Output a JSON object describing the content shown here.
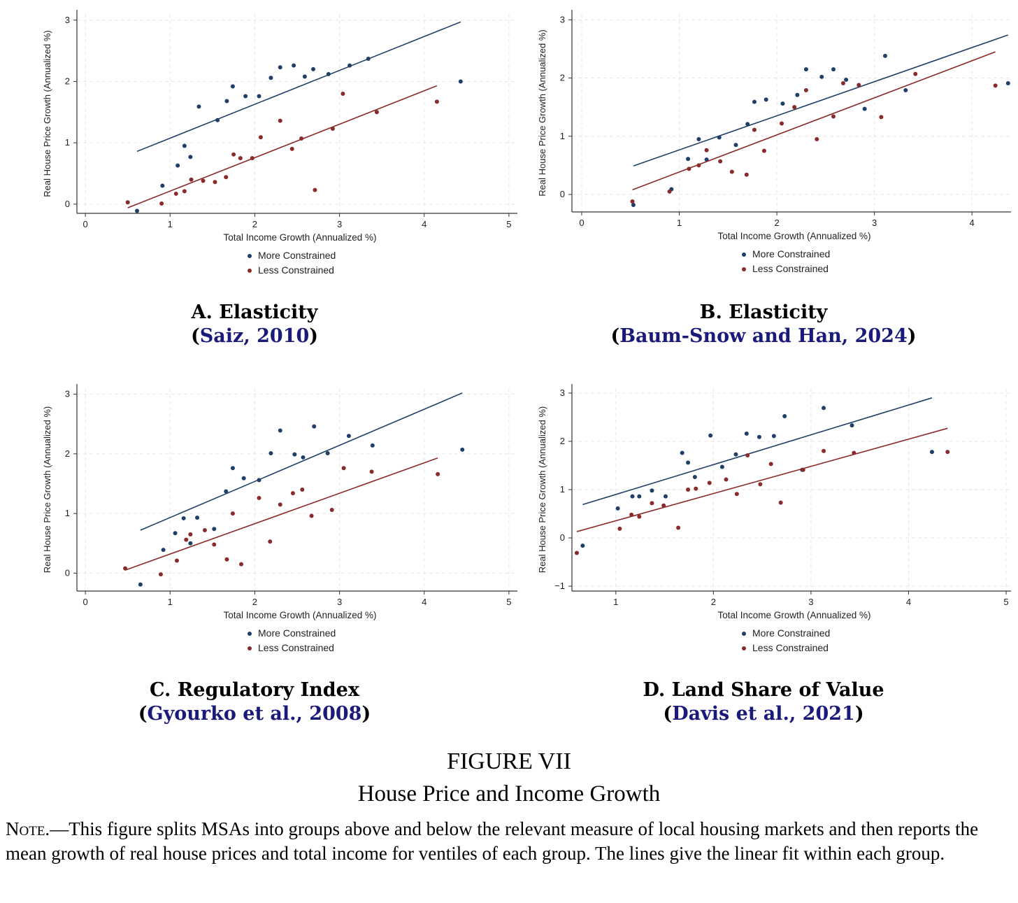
{
  "colors": {
    "more": "#1f3f66",
    "less": "#8a2a2a",
    "axis": "#333333",
    "grid": "#e6e6e6"
  },
  "figure": {
    "number": "FIGURE VII",
    "title": "House Price and Income Growth",
    "note_label": "Note.",
    "note_text": "—This figure splits MSAs into groups above and below the relevant measure of local housing markets and then reports the mean growth of real house prices and total income for ventiles of each group. The lines give the linear fit within each group."
  },
  "chart_data": [
    {
      "type": "scatter",
      "title": "A. Elasticity",
      "citation_author": "Saiz",
      "citation_year": "2010",
      "xlabel": "Total Income Growth (Annualized %)",
      "ylabel": "Real House Price Growth (Annualized %)",
      "xlim": [
        -0.1,
        5.1
      ],
      "ylim": [
        -0.15,
        3.1
      ],
      "xticks": [
        "0",
        "1",
        "2",
        "3",
        "4",
        "5"
      ],
      "yticks": [
        "0",
        "1",
        "2",
        "3"
      ],
      "grid": true,
      "legend_position": "bottom",
      "series": [
        {
          "name": "More Constrained",
          "points": [
            [
              0.61,
              -0.11
            ],
            [
              0.91,
              0.3
            ],
            [
              1.09,
              0.63
            ],
            [
              1.17,
              0.95
            ],
            [
              1.24,
              0.77
            ],
            [
              1.34,
              1.59
            ],
            [
              1.56,
              1.37
            ],
            [
              1.67,
              1.68
            ],
            [
              1.74,
              1.92
            ],
            [
              1.89,
              1.76
            ],
            [
              2.05,
              1.76
            ],
            [
              2.19,
              2.06
            ],
            [
              2.3,
              2.23
            ],
            [
              2.46,
              2.26
            ],
            [
              2.59,
              2.08
            ],
            [
              2.69,
              2.2
            ],
            [
              2.87,
              2.12
            ],
            [
              3.12,
              2.26
            ],
            [
              3.34,
              2.37
            ],
            [
              4.43,
              2.0
            ]
          ],
          "fit": [
            [
              0.61,
              0.86
            ],
            [
              4.43,
              2.97
            ]
          ]
        },
        {
          "name": "Less Constrained",
          "points": [
            [
              0.5,
              0.03
            ],
            [
              0.9,
              0.01
            ],
            [
              1.07,
              0.17
            ],
            [
              1.17,
              0.21
            ],
            [
              1.25,
              0.4
            ],
            [
              1.39,
              0.38
            ],
            [
              1.53,
              0.36
            ],
            [
              1.66,
              0.44
            ],
            [
              1.75,
              0.81
            ],
            [
              1.83,
              0.75
            ],
            [
              1.97,
              0.75
            ],
            [
              2.07,
              1.09
            ],
            [
              2.3,
              1.36
            ],
            [
              2.44,
              0.9
            ],
            [
              2.55,
              1.07
            ],
            [
              2.71,
              0.23
            ],
            [
              2.92,
              1.23
            ],
            [
              3.04,
              1.8
            ],
            [
              3.44,
              1.5
            ],
            [
              4.15,
              1.67
            ]
          ],
          "fit": [
            [
              0.5,
              -0.06
            ],
            [
              4.15,
              1.93
            ]
          ]
        }
      ]
    },
    {
      "type": "scatter",
      "title": "B. Elasticity",
      "citation_author": "Baum-Snow and Han",
      "citation_year": "2024",
      "xlabel": "Total Income Growth (Annualized %)",
      "ylabel": "Real House Price Growth (Annualized %)",
      "xlim": [
        -0.1,
        4.4
      ],
      "ylim": [
        -0.3,
        3.1
      ],
      "xticks": [
        "0",
        "1",
        "2",
        "3",
        "4"
      ],
      "yticks": [
        "0",
        "1",
        "2",
        "3"
      ],
      "grid": true,
      "legend_position": "bottom",
      "series": [
        {
          "name": "More Constrained",
          "points": [
            [
              0.53,
              -0.18
            ],
            [
              0.92,
              0.09
            ],
            [
              1.09,
              0.61
            ],
            [
              1.2,
              0.95
            ],
            [
              1.28,
              0.6
            ],
            [
              1.41,
              0.98
            ],
            [
              1.58,
              0.85
            ],
            [
              1.7,
              1.21
            ],
            [
              1.77,
              1.59
            ],
            [
              1.89,
              1.63
            ],
            [
              2.06,
              1.56
            ],
            [
              2.21,
              1.71
            ],
            [
              2.3,
              2.15
            ],
            [
              2.46,
              2.02
            ],
            [
              2.58,
              2.15
            ],
            [
              2.71,
              1.97
            ],
            [
              2.9,
              1.47
            ],
            [
              3.11,
              2.38
            ],
            [
              3.32,
              1.79
            ],
            [
              4.37,
              1.91
            ]
          ],
          "fit": [
            [
              0.53,
              0.49
            ],
            [
              4.37,
              2.74
            ]
          ]
        },
        {
          "name": "Less Constrained",
          "points": [
            [
              0.52,
              -0.12
            ],
            [
              0.9,
              0.05
            ],
            [
              1.1,
              0.44
            ],
            [
              1.2,
              0.5
            ],
            [
              1.28,
              0.76
            ],
            [
              1.42,
              0.57
            ],
            [
              1.54,
              0.39
            ],
            [
              1.69,
              0.34
            ],
            [
              1.77,
              1.11
            ],
            [
              1.87,
              0.75
            ],
            [
              2.05,
              1.22
            ],
            [
              2.18,
              1.5
            ],
            [
              2.3,
              1.79
            ],
            [
              2.41,
              0.95
            ],
            [
              2.58,
              1.34
            ],
            [
              2.68,
              1.91
            ],
            [
              2.84,
              1.88
            ],
            [
              3.07,
              1.33
            ],
            [
              3.42,
              2.07
            ],
            [
              4.24,
              1.87
            ]
          ],
          "fit": [
            [
              0.52,
              0.08
            ],
            [
              4.24,
              2.45
            ]
          ]
        }
      ]
    },
    {
      "type": "scatter",
      "title": "C. Regulatory Index",
      "citation_author": "Gyourko et al.",
      "citation_year": "2008",
      "xlabel": "Total Income Growth (Annualized %)",
      "ylabel": "Real House Price Growth (Annualized %)",
      "xlim": [
        -0.1,
        5.1
      ],
      "ylim": [
        -0.3,
        3.1
      ],
      "xticks": [
        "0",
        "1",
        "2",
        "3",
        "4",
        "5"
      ],
      "yticks": [
        "0",
        "1",
        "2",
        "3"
      ],
      "grid": true,
      "legend_position": "bottom",
      "series": [
        {
          "name": "More Constrained",
          "points": [
            [
              0.65,
              -0.19
            ],
            [
              0.92,
              0.39
            ],
            [
              1.06,
              0.67
            ],
            [
              1.16,
              0.92
            ],
            [
              1.24,
              0.5
            ],
            [
              1.32,
              0.93
            ],
            [
              1.52,
              0.74
            ],
            [
              1.66,
              1.37
            ],
            [
              1.74,
              1.76
            ],
            [
              1.87,
              1.59
            ],
            [
              2.05,
              1.56
            ],
            [
              2.19,
              2.01
            ],
            [
              2.3,
              2.39
            ],
            [
              2.47,
              1.99
            ],
            [
              2.57,
              1.94
            ],
            [
              2.7,
              2.46
            ],
            [
              2.86,
              2.01
            ],
            [
              3.11,
              2.3
            ],
            [
              3.39,
              2.14
            ],
            [
              4.45,
              2.07
            ]
          ],
          "fit": [
            [
              0.65,
              0.72
            ],
            [
              4.45,
              3.02
            ]
          ]
        },
        {
          "name": "Less Constrained",
          "points": [
            [
              0.47,
              0.08
            ],
            [
              0.89,
              -0.02
            ],
            [
              1.08,
              0.21
            ],
            [
              1.19,
              0.56
            ],
            [
              1.24,
              0.65
            ],
            [
              1.41,
              0.72
            ],
            [
              1.52,
              0.48
            ],
            [
              1.67,
              0.23
            ],
            [
              1.74,
              1.0
            ],
            [
              1.84,
              0.15
            ],
            [
              2.05,
              1.26
            ],
            [
              2.18,
              0.53
            ],
            [
              2.3,
              1.15
            ],
            [
              2.45,
              1.34
            ],
            [
              2.56,
              1.4
            ],
            [
              2.67,
              0.96
            ],
            [
              2.91,
              1.06
            ],
            [
              3.05,
              1.76
            ],
            [
              3.38,
              1.7
            ],
            [
              4.16,
              1.66
            ]
          ],
          "fit": [
            [
              0.47,
              0.05
            ],
            [
              4.16,
              1.93
            ]
          ]
        }
      ]
    },
    {
      "type": "scatter",
      "title": "D. Land Share of Value",
      "citation_author": "Davis et al.",
      "citation_year": "2021",
      "xlabel": "Total Income Growth (Annualized %)",
      "ylabel": "Real House Price Growth (Annualized %)",
      "xlim": [
        0.55,
        5.05
      ],
      "ylim": [
        -1.1,
        3.1
      ],
      "xticks": [
        "1",
        "2",
        "3",
        "4",
        "5"
      ],
      "yticks": [
        "−1",
        "0",
        "1",
        "2",
        "3"
      ],
      "grid": true,
      "legend_position": "bottom",
      "series": [
        {
          "name": "More Constrained",
          "points": [
            [
              0.66,
              -0.16
            ],
            [
              1.02,
              0.61
            ],
            [
              1.17,
              0.86
            ],
            [
              1.24,
              0.86
            ],
            [
              1.37,
              0.98
            ],
            [
              1.51,
              0.86
            ],
            [
              1.68,
              1.76
            ],
            [
              1.74,
              1.56
            ],
            [
              1.81,
              1.26
            ],
            [
              1.97,
              2.12
            ],
            [
              2.09,
              1.47
            ],
            [
              2.23,
              1.73
            ],
            [
              2.34,
              2.16
            ],
            [
              2.47,
              2.09
            ],
            [
              2.62,
              2.11
            ],
            [
              2.73,
              2.52
            ],
            [
              2.91,
              1.41
            ],
            [
              3.13,
              2.69
            ],
            [
              3.42,
              2.33
            ],
            [
              4.24,
              1.78
            ]
          ],
          "fit": [
            [
              0.66,
              0.69
            ],
            [
              4.24,
              2.9
            ]
          ]
        },
        {
          "name": "Less Constrained",
          "points": [
            [
              0.6,
              -0.31
            ],
            [
              1.04,
              0.19
            ],
            [
              1.16,
              0.48
            ],
            [
              1.24,
              0.44
            ],
            [
              1.37,
              0.72
            ],
            [
              1.49,
              0.67
            ],
            [
              1.64,
              0.21
            ],
            [
              1.74,
              1.0
            ],
            [
              1.82,
              1.02
            ],
            [
              1.96,
              1.14
            ],
            [
              2.13,
              1.21
            ],
            [
              2.24,
              0.91
            ],
            [
              2.35,
              1.71
            ],
            [
              2.48,
              1.11
            ],
            [
              2.59,
              1.53
            ],
            [
              2.69,
              0.73
            ],
            [
              2.92,
              1.41
            ],
            [
              3.13,
              1.8
            ],
            [
              3.44,
              1.76
            ],
            [
              4.4,
              1.78
            ]
          ],
          "fit": [
            [
              0.6,
              0.13
            ],
            [
              4.4,
              2.27
            ]
          ]
        }
      ]
    }
  ]
}
